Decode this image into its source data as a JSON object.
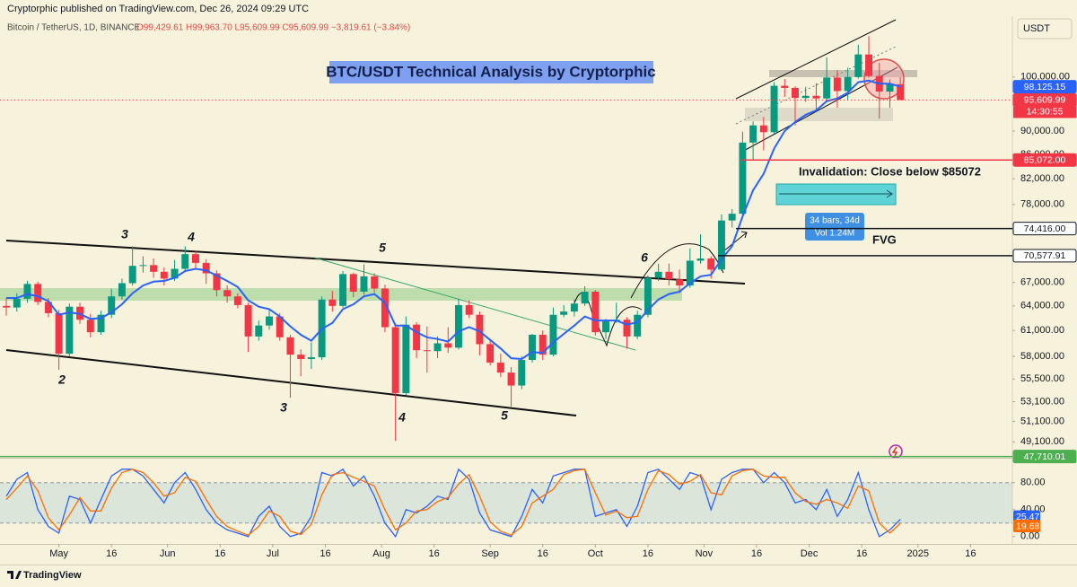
{
  "header": {
    "publisher": "Cryptorphic published on TradingView.com, Dec 26, 2024 09:29 UTC",
    "footer": "TradingView",
    "currency": "USDT"
  },
  "chart_data": [
    {
      "type": "candlestick",
      "title": "BTC/USDT Technical Analysis by Cryptorphic",
      "legend": {
        "symbol": "Bitcoin / TetherUS, 1D, BINANCE",
        "values": "O99,429.61 H99,963.70 L95,609.99 C95,609.99 −3,819.61 (−3.84%)"
      },
      "up_color": "#089981",
      "down_color": "#f23645",
      "log_scale": true,
      "grid": false,
      "ohlc": [
        [
          64000,
          65000,
          62800,
          63800
        ],
        [
          63800,
          65600,
          63300,
          64900
        ],
        [
          64900,
          67200,
          64400,
          66800
        ],
        [
          66800,
          67100,
          64100,
          64500
        ],
        [
          64500,
          65000,
          62600,
          63100
        ],
        [
          63100,
          63500,
          56500,
          58300
        ],
        [
          58300,
          64300,
          58000,
          63900
        ],
        [
          63900,
          64400,
          61800,
          62300
        ],
        [
          62300,
          63000,
          60200,
          60800
        ],
        [
          60800,
          63400,
          60500,
          62900
        ],
        [
          62900,
          66200,
          62500,
          65200
        ],
        [
          65200,
          67500,
          64800,
          66900
        ],
        [
          66900,
          71900,
          66600,
          69200
        ],
        [
          69200,
          70500,
          68300,
          69300
        ],
        [
          69300,
          70200,
          67600,
          68400
        ],
        [
          68400,
          69000,
          66600,
          67500
        ],
        [
          67500,
          70000,
          67200,
          68800
        ],
        [
          68800,
          71900,
          68400,
          70800
        ],
        [
          70800,
          71200,
          68800,
          69600
        ],
        [
          69600,
          70100,
          66800,
          68200
        ],
        [
          68200,
          68600,
          65200,
          66000
        ],
        [
          66000,
          66600,
          64400,
          65200
        ],
        [
          65200,
          65600,
          63700,
          64100
        ],
        [
          64100,
          64400,
          58500,
          60300
        ],
        [
          60300,
          62200,
          59800,
          61600
        ],
        [
          61600,
          63700,
          61100,
          62700
        ],
        [
          62700,
          63100,
          59800,
          60200
        ],
        [
          60200,
          60500,
          53500,
          58200
        ],
        [
          58200,
          58800,
          55800,
          57700
        ],
        [
          57700,
          59600,
          56600,
          57900
        ],
        [
          57900,
          65200,
          57600,
          64800
        ],
        [
          64800,
          65900,
          63300,
          64000
        ],
        [
          64000,
          68500,
          63800,
          68100
        ],
        [
          68100,
          68300,
          65100,
          65800
        ],
        [
          65800,
          69400,
          65400,
          67800
        ],
        [
          67800,
          68200,
          65700,
          66200
        ],
        [
          66200,
          66700,
          60800,
          61400
        ],
        [
          61400,
          61800,
          49200,
          54000
        ],
        [
          54000,
          62700,
          53800,
          61700
        ],
        [
          61700,
          62000,
          57800,
          58700
        ],
        [
          58700,
          61500,
          56200,
          58600
        ],
        [
          58600,
          60300,
          57800,
          59500
        ],
        [
          59500,
          61400,
          58400,
          59000
        ],
        [
          59000,
          64900,
          58800,
          64100
        ],
        [
          64100,
          64700,
          62500,
          62900
        ],
        [
          62900,
          63300,
          58100,
          59400
        ],
        [
          59400,
          59800,
          57000,
          57300
        ],
        [
          57300,
          58300,
          55700,
          56200
        ],
        [
          56200,
          56800,
          52600,
          54800
        ],
        [
          54800,
          58000,
          54400,
          57600
        ],
        [
          57600,
          60600,
          57300,
          60500
        ],
        [
          60500,
          61000,
          57600,
          58200
        ],
        [
          58200,
          63800,
          58000,
          62900
        ],
        [
          62900,
          64100,
          62600,
          63300
        ],
        [
          63300,
          64800,
          62700,
          64300
        ],
        [
          64300,
          66500,
          64000,
          65800
        ],
        [
          65800,
          66000,
          60400,
          60800
        ],
        [
          60800,
          62400,
          60000,
          62100
        ],
        [
          62100,
          64400,
          61900,
          62300
        ],
        [
          62300,
          62600,
          58900,
          60300
        ],
        [
          60300,
          63400,
          60000,
          62900
        ],
        [
          62900,
          67900,
          62600,
          67600
        ],
        [
          67600,
          69500,
          67200,
          68400
        ],
        [
          68400,
          69500,
          66600,
          67400
        ],
        [
          67400,
          68700,
          65600,
          66600
        ],
        [
          66600,
          71600,
          66300,
          69900
        ],
        [
          69900,
          73600,
          69500,
          70200
        ],
        [
          70200,
          70500,
          67500,
          68700
        ],
        [
          68700,
          76500,
          68500,
          75600
        ],
        [
          75600,
          77300,
          74600,
          76600
        ],
        [
          76600,
          89900,
          76300,
          88000
        ],
        [
          88000,
          91700,
          85100,
          91000
        ],
        [
          91000,
          92500,
          86700,
          89800
        ],
        [
          89800,
          99000,
          89500,
          98300
        ],
        [
          98300,
          99600,
          96200,
          97900
        ],
        [
          97900,
          98200,
          91000,
          96000
        ],
        [
          96000,
          98100,
          95300,
          96400
        ],
        [
          96400,
          98800,
          93600,
          95900
        ],
        [
          95900,
          103900,
          95500,
          99900
        ],
        [
          99900,
          101300,
          94200,
          97300
        ],
        [
          97300,
          101800,
          95700,
          100000
        ],
        [
          100000,
          106500,
          99700,
          104500
        ],
        [
          104500,
          108300,
          99900,
          100200
        ],
        [
          100200,
          102800,
          92200,
          97200
        ],
        [
          97200,
          99500,
          94200,
          98600
        ],
        [
          98600,
          99963.7,
          95609.99,
          95609.99
        ]
      ],
      "ema": {
        "color": "#2962ff",
        "values": [
          65000,
          65000,
          65500,
          65200,
          64600,
          62900,
          63200,
          63000,
          62400,
          62500,
          63200,
          64200,
          65600,
          66600,
          67100,
          67200,
          67600,
          68500,
          68800,
          68600,
          67900,
          67200,
          66400,
          64700,
          63900,
          63600,
          62700,
          61500,
          60500,
          59800,
          61200,
          61900,
          63600,
          64200,
          65200,
          65500,
          64400,
          61600,
          61600,
          60800,
          60200,
          60000,
          59700,
          60900,
          61400,
          60900,
          59900,
          58900,
          57800,
          57700,
          58500,
          58400,
          59600,
          60600,
          61600,
          62700,
          62200,
          62200,
          62200,
          61700,
          62000,
          63500,
          64800,
          65500,
          65800,
          66900,
          67800,
          68000,
          70100,
          71900,
          76200,
          80200,
          82800,
          87000,
          90000,
          91600,
          92900,
          93700,
          95400,
          95900,
          97000,
          99000,
          99300,
          98700,
          98700,
          98125.15
        ]
      },
      "xlim": [
        -0.6,
        95.65
      ],
      "xticks": [
        {
          "value": 5,
          "label": "May"
        },
        {
          "value": 10,
          "label": "16"
        },
        {
          "value": 15.33,
          "label": "Jun"
        },
        {
          "value": 20.33,
          "label": "16"
        },
        {
          "value": 25.33,
          "label": "Jul"
        },
        {
          "value": 30.33,
          "label": "16"
        },
        {
          "value": 35.67,
          "label": "Aug"
        },
        {
          "value": 40.67,
          "label": "16"
        },
        {
          "value": 46,
          "label": "Sep"
        },
        {
          "value": 51,
          "label": "16"
        },
        {
          "value": 56,
          "label": "Oct"
        },
        {
          "value": 61,
          "label": "16"
        },
        {
          "value": 66.33,
          "label": "Nov"
        },
        {
          "value": 71.33,
          "label": "16"
        },
        {
          "value": 76.33,
          "label": "Dec"
        },
        {
          "value": 81.33,
          "label": "16"
        },
        {
          "value": 86.67,
          "label": "2025"
        },
        {
          "value": 91.67,
          "label": "16"
        }
      ],
      "ylim": [
        47600,
        112600
      ],
      "yticks": [
        {
          "value": 100000,
          "label": "100,000.00"
        },
        {
          "value": 90000,
          "label": "90,000.00"
        },
        {
          "value": 86000,
          "label": "86,000.00"
        },
        {
          "value": 82000,
          "label": "82,000.00"
        },
        {
          "value": 78000,
          "label": "78,000.00"
        },
        {
          "value": 67000,
          "label": "67,000.00"
        },
        {
          "value": 64000,
          "label": "64,000.00"
        },
        {
          "value": 61000,
          "label": "61,000.00"
        },
        {
          "value": 58000,
          "label": "58,000.00"
        },
        {
          "value": 55500,
          "label": "55,500.00"
        },
        {
          "value": 53100,
          "label": "53,100.00"
        },
        {
          "value": 51100,
          "label": "51,100.00"
        },
        {
          "value": 49100,
          "label": "49,100.00"
        }
      ],
      "price_labels": [
        {
          "value": 98125.15,
          "label": "98,125.15",
          "color": "#2962ff"
        },
        {
          "value": 95609.99,
          "label": "95,609.99",
          "color": "#f23645"
        },
        {
          "value": 85072,
          "label": "85,072.00",
          "color": "#f23645"
        },
        {
          "value": 74416,
          "label": "74,416.00",
          "color": "#131722"
        },
        {
          "value": 70577.91,
          "label": "70,577.91",
          "color": "#131722"
        },
        {
          "value": 47710.01,
          "label": "47,710.01",
          "color": "#4caf50"
        }
      ],
      "countdown": "14:30:55",
      "annotations": {
        "waves": [
          "3",
          "4",
          "2",
          "3",
          "4",
          "5",
          "5",
          "6"
        ],
        "invalidation": "Invalidation: Close below $85072",
        "fvg": "FVG",
        "measure": [
          "34 bars, 34d",
          "Vol 1.24M"
        ]
      }
    },
    {
      "type": "line",
      "band": [
        20,
        80
      ],
      "ylim": [
        -11,
        113
      ],
      "yticks": [
        {
          "value": 80,
          "label": "80.00"
        },
        {
          "value": 40,
          "label": "40.00"
        },
        {
          "value": 0,
          "label": "0.00"
        }
      ],
      "series": [
        {
          "color": "#2962ff",
          "values": [
            60,
            85,
            95,
            40,
            15,
            5,
            60,
            55,
            20,
            55,
            90,
            100,
            100,
            90,
            70,
            50,
            80,
            95,
            70,
            40,
            20,
            10,
            5,
            0,
            30,
            45,
            15,
            0,
            5,
            30,
            95,
            90,
            100,
            75,
            90,
            60,
            20,
            0,
            40,
            35,
            45,
            60,
            55,
            100,
            85,
            35,
            10,
            5,
            0,
            30,
            70,
            50,
            90,
            95,
            100,
            100,
            30,
            35,
            40,
            15,
            45,
            95,
            100,
            85,
            70,
            95,
            90,
            40,
            85,
            95,
            100,
            100,
            80,
            95,
            80,
            50,
            55,
            40,
            70,
            30,
            55,
            95,
            40,
            0,
            10,
            25.47
          ],
          "value_labels": "25.47"
        },
        {
          "color": "#ff6d00",
          "values": [
            55,
            72,
            90,
            68,
            28,
            10,
            32,
            58,
            38,
            38,
            72,
            95,
            100,
            95,
            80,
            60,
            65,
            88,
            82,
            55,
            30,
            15,
            8,
            2,
            15,
            38,
            30,
            8,
            3,
            18,
            62,
            92,
            95,
            88,
            82,
            75,
            40,
            10,
            20,
            38,
            40,
            52,
            58,
            78,
            92,
            60,
            22,
            8,
            2,
            15,
            50,
            60,
            70,
            92,
            98,
            100,
            65,
            32,
            38,
            28,
            30,
            70,
            98,
            92,
            78,
            82,
            92,
            65,
            62,
            90,
            98,
            100,
            90,
            88,
            88,
            65,
            52,
            48,
            55,
            50,
            42,
            75,
            68,
            20,
            5,
            19.68
          ],
          "value_labels": "19.68"
        }
      ]
    }
  ]
}
